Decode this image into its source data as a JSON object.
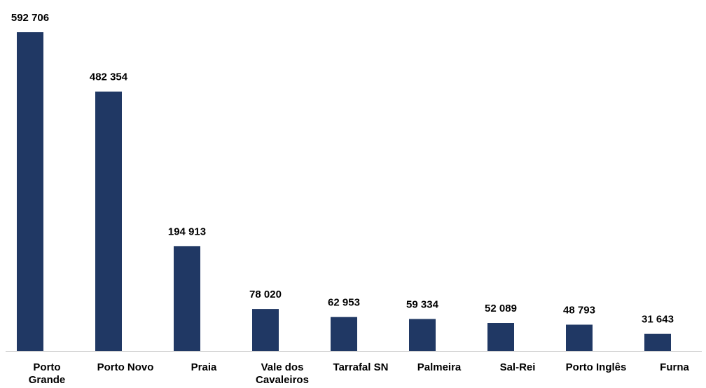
{
  "chart_data": {
    "type": "bar",
    "categories": [
      "Porto Grande",
      "Porto Novo",
      "Praia",
      "Vale dos Cavaleiros",
      "Tarrafal SN",
      "Palmeira",
      "Sal-Rei",
      "Porto Inglês",
      "Furna"
    ],
    "values": [
      592706,
      482354,
      194913,
      78020,
      62953,
      59334,
      52089,
      48793,
      31643
    ],
    "value_labels": [
      "592 706",
      "482 354",
      "194 913",
      "78 020",
      "62 953",
      "59 334",
      "52 089",
      "48 793",
      "31 643"
    ],
    "color": "#203864"
  }
}
